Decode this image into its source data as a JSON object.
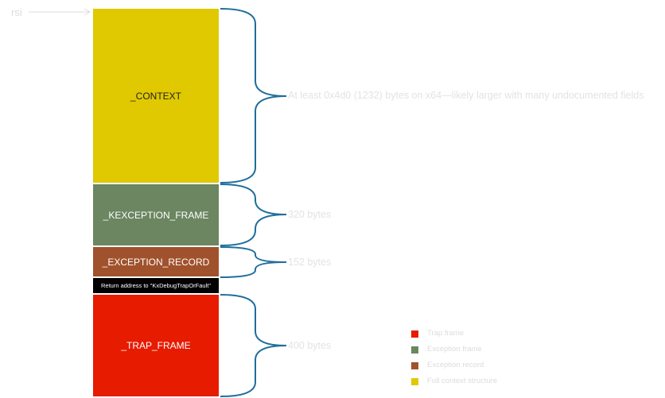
{
  "pointer": {
    "label": "rsi"
  },
  "blocks": [
    {
      "label": "_CONTEXT",
      "color": "#e0c900",
      "size_text": "At least 0x4d0 (1232) bytes on x64—likely larger with many undocumented fields"
    },
    {
      "label": "_KEXCEPTION_FRAME",
      "color": "#6b8660",
      "size_text": "320 bytes"
    },
    {
      "label": "_EXCEPTION_RECORD",
      "color": "#a0522d",
      "size_text": "152 bytes"
    },
    {
      "label": "Return address to \"KxDebugTrapOrFault\"",
      "color": "#000000"
    },
    {
      "label": "_TRAP_FRAME",
      "color": "#e61b00",
      "size_text": "400 bytes"
    }
  ],
  "legend": [
    {
      "label": "Trap frame",
      "color": "#e61b00"
    },
    {
      "label": "Exception frame",
      "color": "#6b8660"
    },
    {
      "label": "Exception record",
      "color": "#a0522d"
    },
    {
      "label": "Full context structure",
      "color": "#e0c900"
    }
  ],
  "brace_color": "#1f6e9c",
  "arrow_color": "#dcdcdc"
}
